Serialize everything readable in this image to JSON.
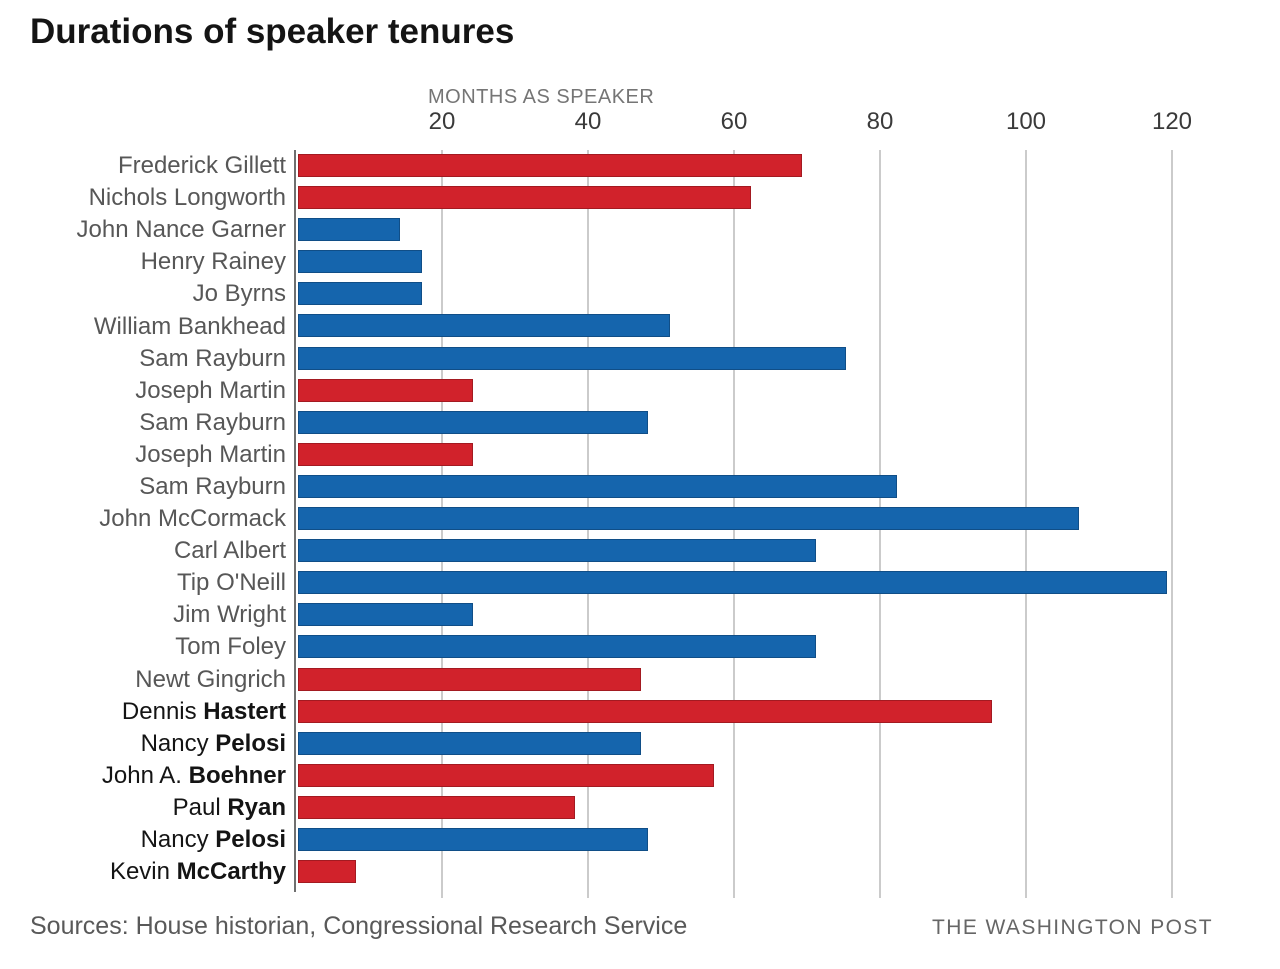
{
  "title": "Durations of speaker tenures",
  "footer": {
    "sources": "Sources: House historian, Congressional Research Service",
    "credit": "THE WASHINGTON POST"
  },
  "chart_data": {
    "type": "bar",
    "orientation": "horizontal",
    "title": "Durations of speaker tenures",
    "xlabel": "MONTHS AS SPEAKER",
    "ylabel": "",
    "xlim": [
      0,
      134.5
    ],
    "ticks": [
      20,
      40,
      60,
      80,
      100,
      120
    ],
    "grid": true,
    "colors": {
      "republican": "#d1222b",
      "democrat": "#1565ad"
    },
    "categories": [
      "Frederick Gillett",
      "Nichols Longworth",
      "John Nance Garner",
      "Henry Rainey",
      "Jo Byrns",
      "William Bankhead",
      "Sam Rayburn",
      "Joseph Martin",
      "Sam Rayburn",
      "Joseph Martin",
      "Sam Rayburn",
      "John McCormack",
      "Carl Albert",
      "Tip O'Neill",
      "Jim Wright",
      "Tom Foley",
      "Newt Gingrich",
      "Dennis Hastert",
      "Nancy Pelosi",
      "John A. Boehner",
      "Paul Ryan",
      "Nancy Pelosi",
      "Kevin McCarthy"
    ],
    "values": [
      69,
      62,
      14,
      17,
      17,
      51,
      75,
      24,
      48,
      24,
      82,
      107,
      71,
      119,
      24,
      71,
      47,
      95,
      47,
      57,
      38,
      48,
      8
    ],
    "rows": [
      {
        "name": "Frederick Gillett",
        "bold": "",
        "party": "republican",
        "months": 69,
        "recent": false
      },
      {
        "name": "Nichols Longworth",
        "bold": "",
        "party": "republican",
        "months": 62,
        "recent": false
      },
      {
        "name": "John Nance Garner",
        "bold": "",
        "party": "democrat",
        "months": 14,
        "recent": false
      },
      {
        "name": "Henry Rainey",
        "bold": "",
        "party": "democrat",
        "months": 17,
        "recent": false
      },
      {
        "name": "Jo Byrns",
        "bold": "",
        "party": "democrat",
        "months": 17,
        "recent": false
      },
      {
        "name": "William Bankhead",
        "bold": "",
        "party": "democrat",
        "months": 51,
        "recent": false
      },
      {
        "name": "Sam Rayburn",
        "bold": "",
        "party": "democrat",
        "months": 75,
        "recent": false
      },
      {
        "name": "Joseph Martin",
        "bold": "",
        "party": "republican",
        "months": 24,
        "recent": false
      },
      {
        "name": "Sam Rayburn",
        "bold": "",
        "party": "democrat",
        "months": 48,
        "recent": false
      },
      {
        "name": "Joseph Martin",
        "bold": "",
        "party": "republican",
        "months": 24,
        "recent": false
      },
      {
        "name": "Sam Rayburn",
        "bold": "",
        "party": "democrat",
        "months": 82,
        "recent": false
      },
      {
        "name": "John McCormack",
        "bold": "",
        "party": "democrat",
        "months": 107,
        "recent": false
      },
      {
        "name": "Carl Albert",
        "bold": "",
        "party": "democrat",
        "months": 71,
        "recent": false
      },
      {
        "name": "Tip O'Neill",
        "bold": "",
        "party": "democrat",
        "months": 119,
        "recent": false
      },
      {
        "name": "Jim Wright",
        "bold": "",
        "party": "democrat",
        "months": 24,
        "recent": false
      },
      {
        "name": "Tom Foley",
        "bold": "",
        "party": "democrat",
        "months": 71,
        "recent": false
      },
      {
        "name": "Newt Gingrich",
        "bold": "",
        "party": "republican",
        "months": 47,
        "recent": false
      },
      {
        "name": "Dennis ",
        "bold": "Hastert",
        "party": "republican",
        "months": 95,
        "recent": true
      },
      {
        "name": "Nancy ",
        "bold": "Pelosi",
        "party": "democrat",
        "months": 47,
        "recent": true
      },
      {
        "name": "John A. ",
        "bold": "Boehner",
        "party": "republican",
        "months": 57,
        "recent": true
      },
      {
        "name": "Paul ",
        "bold": "Ryan",
        "party": "republican",
        "months": 38,
        "recent": true
      },
      {
        "name": "Nancy ",
        "bold": "Pelosi",
        "party": "democrat",
        "months": 48,
        "recent": true
      },
      {
        "name": "Kevin ",
        "bold": "McCarthy",
        "party": "republican",
        "months": 8,
        "recent": true
      }
    ]
  }
}
